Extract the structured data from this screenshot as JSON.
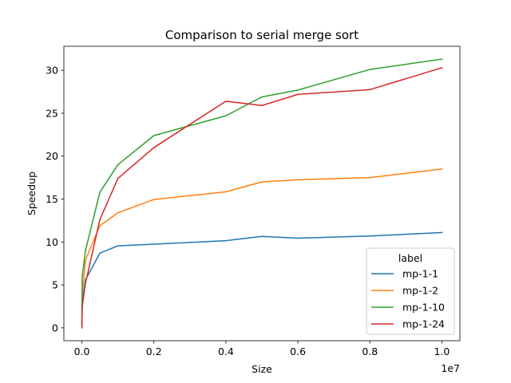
{
  "chart_data": {
    "type": "line",
    "title": "Comparison to serial merge sort",
    "xlabel": "Size",
    "ylabel": "Speedup",
    "x_offset_label": "1e7",
    "xlim": [
      -500000,
      10500000
    ],
    "ylim": [
      -1.5,
      32.8
    ],
    "x_ticks": [
      0,
      2000000,
      4000000,
      6000000,
      8000000,
      10000000
    ],
    "x_tick_labels": [
      "0.0",
      "0.2",
      "0.4",
      "0.6",
      "0.8",
      "1.0"
    ],
    "y_ticks": [
      0,
      5,
      10,
      15,
      20,
      25,
      30
    ],
    "y_tick_labels": [
      "0",
      "5",
      "10",
      "15",
      "20",
      "25",
      "30"
    ],
    "grid": false,
    "legend": {
      "title": "label",
      "placement": "lower right"
    },
    "x": [
      1000,
      10000,
      100000,
      500000,
      1000000,
      2000000,
      4000000,
      5000000,
      6000000,
      8000000,
      10000000
    ],
    "series": [
      {
        "name": "mp-1-1",
        "color": "#1f77b4",
        "values": [
          0.3,
          3.0,
          5.6,
          8.7,
          9.55,
          9.75,
          10.15,
          10.65,
          10.45,
          10.7,
          11.1
        ]
      },
      {
        "name": "mp-1-2",
        "color": "#ff7f0e",
        "values": [
          0.4,
          4.0,
          7.9,
          11.9,
          13.4,
          14.95,
          15.85,
          17.0,
          17.25,
          17.5,
          18.5
        ]
      },
      {
        "name": "mp-1-10",
        "color": "#2ca02c",
        "values": [
          0.5,
          6.0,
          9.0,
          15.8,
          19.0,
          22.4,
          24.7,
          26.9,
          27.7,
          30.1,
          31.3
        ]
      },
      {
        "name": "mp-1-24",
        "color": "#d62728",
        "values": [
          0.0,
          2.5,
          5.2,
          12.6,
          17.4,
          21.0,
          26.4,
          25.9,
          27.2,
          27.75,
          30.3
        ]
      }
    ]
  }
}
